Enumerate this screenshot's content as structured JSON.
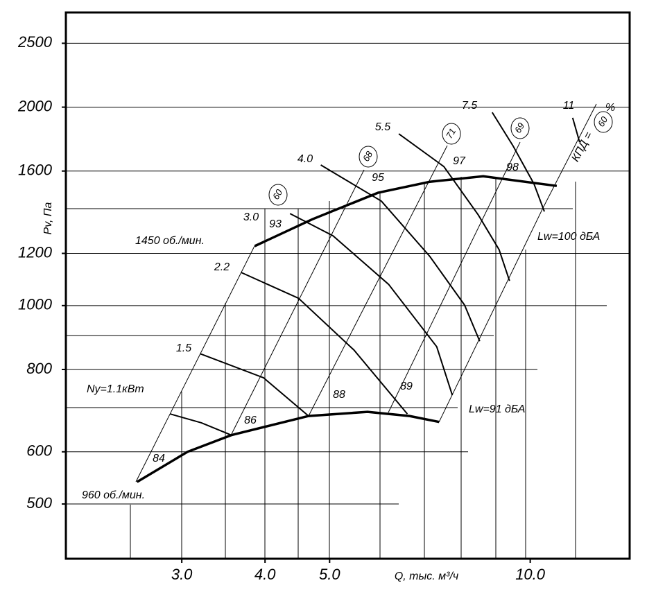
{
  "chart_data": {
    "type": "line",
    "x_label": "Q, тыс. м³/ч",
    "y_label": "Pv, Па",
    "xscale": "log",
    "yscale": "log",
    "xlim": [
      2.01,
      14.1
    ],
    "ylim": [
      413,
      2784
    ],
    "xticks": [
      {
        "value": 3,
        "label": "3.0"
      },
      {
        "value": 4,
        "label": "4.0"
      },
      {
        "value": 5,
        "label": "5.0"
      },
      {
        "value": 10,
        "label": "10.0"
      }
    ],
    "yticks": [
      500,
      600,
      800,
      1000,
      1200,
      1600,
      2000,
      2500
    ],
    "series": [
      {
        "name": "1450 об./мин.",
        "color": "#000000",
        "line_width": 3.5,
        "x": [
          3.86,
          4.71,
          5.91,
          7.07,
          8.5,
          10.96
        ],
        "values": [
          1231,
          1352,
          1483,
          1541,
          1571,
          1519
        ]
      },
      {
        "name": "960 об./мин.",
        "color": "#000000",
        "line_width": 3.5,
        "x": [
          2.57,
          3.06,
          3.56,
          4.65,
          5.7,
          6.59,
          7.3
        ],
        "values": [
          540,
          600,
          636,
          680,
          690,
          680,
          666
        ]
      },
      {
        "name": "Ny=1.1кВт",
        "color": "#000000",
        "line_width": 2,
        "x": [
          2.88,
          3.21,
          3.56
        ],
        "values": [
          685,
          664,
          636
        ]
      },
      {
        "name": "1.5",
        "color": "#000000",
        "line_width": 2,
        "x": [
          3.2,
          3.98,
          4.65
        ],
        "values": [
          845,
          777,
          680
        ]
      },
      {
        "name": "2.2",
        "color": "#000000",
        "line_width": 2,
        "x": [
          3.68,
          4.49,
          5.44,
          6.54
        ],
        "values": [
          1123,
          1026,
          856,
          685
        ]
      },
      {
        "name": "3.0",
        "color": "#000000",
        "line_width": 2,
        "x": [
          4.36,
          5.06,
          6.13,
          7.24,
          7.64
        ],
        "values": [
          1379,
          1276,
          1077,
          866,
          731
        ]
      },
      {
        "name": "4.0",
        "color": "#000000",
        "line_width": 2,
        "x": [
          4.85,
          5.98,
          7.07,
          7.97,
          8.4
        ],
        "values": [
          1634,
          1440,
          1187,
          1002,
          883
        ]
      },
      {
        "name": "5.5",
        "color": "#000000",
        "line_width": 2,
        "x": [
          6.35,
          7.42,
          8.36,
          8.98,
          9.31
        ],
        "values": [
          1822,
          1625,
          1372,
          1216,
          1090
        ]
      },
      {
        "name": "7.5",
        "color": "#000000",
        "line_width": 2,
        "x": [
          8.77,
          9.42,
          10.13,
          10.5
        ],
        "values": [
          1964,
          1748,
          1530,
          1389
        ]
      },
      {
        "name": "11",
        "color": "#000000",
        "line_width": 2,
        "x": [
          11.58,
          11.86
        ],
        "values": [
          1927,
          1770
        ]
      }
    ],
    "annotations": [
      "60",
      "68",
      "71",
      "69",
      "84",
      "86",
      "88",
      "89",
      "93",
      "95",
      "97",
      "98",
      "Lw=100 дБА",
      "Lw=91 дБА",
      "КПД =",
      "60",
      "%"
    ]
  }
}
